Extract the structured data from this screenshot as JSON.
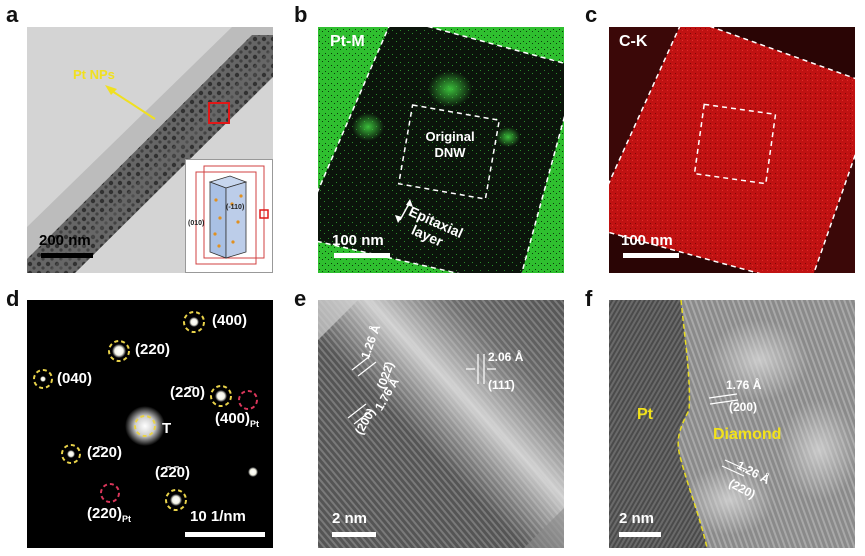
{
  "panel_letters": [
    "a",
    "b",
    "c",
    "d",
    "e",
    "f"
  ],
  "panel_a": {
    "annotation": "Pt NPs",
    "scalebar": "200 nm",
    "inset_labels": [
      "(010)",
      "(-110)"
    ]
  },
  "panel_b": {
    "element": "Pt-M",
    "inner_label_line1": "Original",
    "inner_label_line2": "DNW",
    "outer_label_line1": "Epitaxial",
    "outer_label_line2": "layer",
    "scalebar": "100 nm",
    "colors": {
      "map": "#2fbf2f",
      "background": "#0b140b"
    }
  },
  "panel_c": {
    "element": "C-K",
    "scalebar": "100 nm",
    "colors": {
      "map": "#c01010",
      "background": "#2a0505"
    }
  },
  "panel_d": {
    "spots": [
      {
        "label": "(400)"
      },
      {
        "label": "(220)"
      },
      {
        "label": "(040)"
      },
      {
        "label": "(22̄0)"
      },
      {
        "label": "(400)",
        "sub": "Pt"
      },
      {
        "label": "T"
      },
      {
        "label": "(2̄20)"
      },
      {
        "label": "(2̄2̄0)"
      },
      {
        "label": "(220)",
        "sub": "Pt"
      }
    ],
    "scalebar": "10 1/nm",
    "colors": {
      "diamond_ring": "#e8d24a",
      "pt_ring": "#d9365a"
    }
  },
  "panel_e": {
    "d1": "1.26 Å",
    "d1_plane": "(022̄)",
    "d2": "1.76 Å",
    "d2_plane": "(200)",
    "d3": "2.06 Å",
    "d3_plane": "(111̄)",
    "scalebar": "2 nm"
  },
  "panel_f": {
    "pt_label": "Pt",
    "diamond_label": "Diamond",
    "d1": "1.76 Å",
    "d1_plane": "(200)",
    "d2": "1.26 Å",
    "d2_plane": "(220)",
    "scalebar": "2 nm",
    "colors": {
      "label": "#f2e21a"
    }
  }
}
